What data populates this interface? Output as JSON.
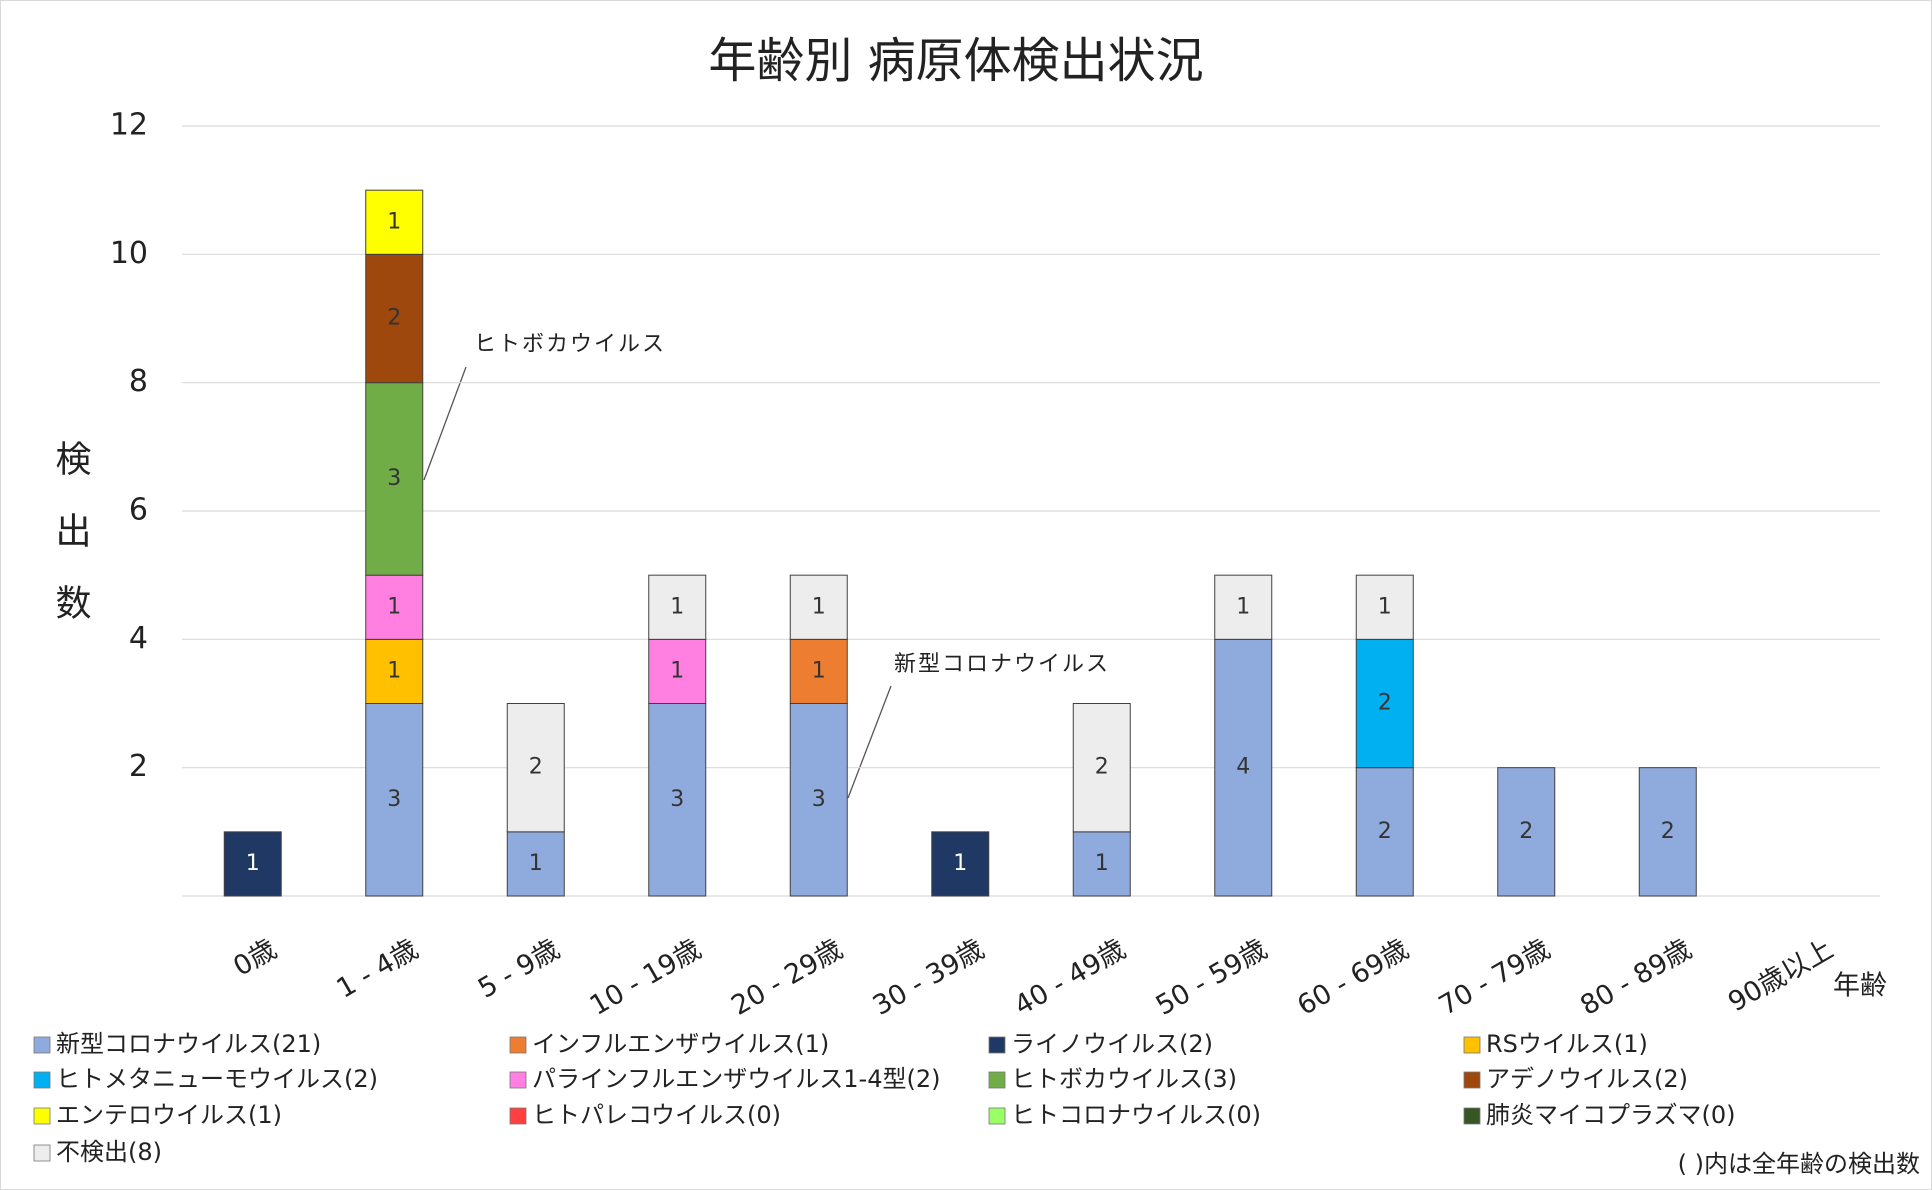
{
  "chart_data": {
    "type": "bar",
    "stacked": true,
    "title": "年齢別 病原体検出状況",
    "y_label": "検出数",
    "x_label": "年齢",
    "note": "( )内は全年齢の検出数",
    "annotations": [
      "ヒトボカウイルス",
      "新型コロナウイルス"
    ],
    "categories": [
      "0歳",
      "1 - 4歳",
      "5 - 9歳",
      "10 - 19歳",
      "20 - 29歳",
      "30 - 39歳",
      "40 - 49歳",
      "50 - 59歳",
      "60 - 69歳",
      "70 - 79歳",
      "80 - 89歳",
      "90歳以上"
    ],
    "ylim": [
      0,
      12
    ],
    "yticks": [
      2,
      4,
      6,
      8,
      10,
      12
    ],
    "grid": true,
    "legend": "bottom",
    "series": [
      {
        "name": "新型コロナウイルス(21)",
        "color": "#8faadc",
        "values": [
          null,
          3,
          1,
          3,
          3,
          null,
          1,
          4,
          2,
          2,
          2,
          null
        ]
      },
      {
        "name": "インフルエンザウイルス(1)",
        "color": "#ed7d31",
        "values": [
          null,
          null,
          null,
          null,
          1,
          null,
          null,
          null,
          null,
          null,
          null,
          null
        ]
      },
      {
        "name": "ライノウイルス(2)",
        "color": "#203864",
        "values": [
          1,
          null,
          null,
          null,
          null,
          1,
          null,
          null,
          null,
          null,
          null,
          null
        ]
      },
      {
        "name": "RSウイルス(1)",
        "color": "#ffc000",
        "values": [
          null,
          1,
          null,
          null,
          null,
          null,
          null,
          null,
          null,
          null,
          null,
          null
        ]
      },
      {
        "name": "ヒトメタニューモウイルス(2)",
        "color": "#00b0f0",
        "values": [
          null,
          null,
          null,
          null,
          null,
          null,
          null,
          null,
          2,
          null,
          null,
          null
        ]
      },
      {
        "name": "パラインフルエンザウイルス1-4型(2)",
        "color": "#ff80e0",
        "values": [
          null,
          1,
          null,
          1,
          null,
          null,
          null,
          null,
          null,
          null,
          null,
          null
        ]
      },
      {
        "name": "ヒトボカウイルス(3)",
        "color": "#70ad47",
        "values": [
          null,
          3,
          null,
          null,
          null,
          null,
          null,
          null,
          null,
          null,
          null,
          null
        ]
      },
      {
        "name": "アデノウイルス(2)",
        "color": "#9e480e",
        "values": [
          null,
          2,
          null,
          null,
          null,
          null,
          null,
          null,
          null,
          null,
          null,
          null
        ]
      },
      {
        "name": "エンテロウイルス(1)",
        "color": "#ffff00",
        "values": [
          null,
          1,
          null,
          null,
          null,
          null,
          null,
          null,
          null,
          null,
          null,
          null
        ]
      },
      {
        "name": "ヒトパレコウイルス(0)",
        "color": "#ff4040",
        "values": [
          null,
          null,
          null,
          null,
          null,
          null,
          null,
          null,
          null,
          null,
          null,
          null
        ]
      },
      {
        "name": "ヒトコロナウイルス(0)",
        "color": "#99ff66",
        "values": [
          null,
          null,
          null,
          null,
          null,
          null,
          null,
          null,
          null,
          null,
          null,
          null
        ]
      },
      {
        "name": "肺炎マイコプラズマ(0)",
        "color": "#375623",
        "values": [
          null,
          null,
          null,
          null,
          null,
          null,
          null,
          null,
          null,
          null,
          null,
          null
        ]
      },
      {
        "name": "不検出(8)",
        "color": "#ededed",
        "values": [
          null,
          null,
          2,
          1,
          1,
          null,
          2,
          1,
          1,
          null,
          null,
          null
        ]
      }
    ]
  }
}
